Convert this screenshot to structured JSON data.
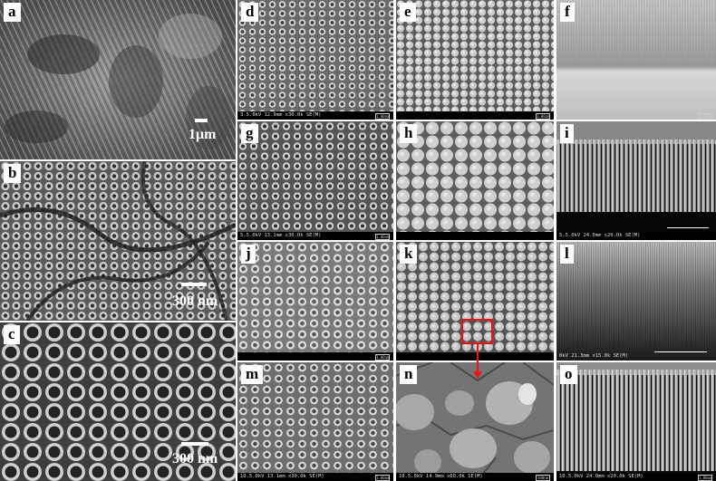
{
  "panels": {
    "a": {
      "label": "a",
      "scale": "1μm"
    },
    "b": {
      "label": "b",
      "scale": "300 nm"
    },
    "c": {
      "label": "c",
      "scale": "300 nm"
    },
    "d": {
      "label": "d",
      "footer": "3.5.0kV 12.9mm x30.0k SE(M)",
      "sb": "1.00um"
    },
    "e": {
      "label": "e",
      "footer": "",
      "sb": "1.00um"
    },
    "f": {
      "label": "f",
      "footer": "",
      "sb": "1.00um"
    },
    "g": {
      "label": "g",
      "footer": "5.5.0kV 13.1mm x30.0k SE(M)",
      "sb": "1.00um"
    },
    "h": {
      "label": "h",
      "footer": "",
      "sb": ""
    },
    "i": {
      "label": "i",
      "footer": "5.5.0kV 24.0mm x20.0k SE(M)",
      "sb": ""
    },
    "j": {
      "label": "j",
      "footer": "",
      "sb": "1.00um"
    },
    "k": {
      "label": "k",
      "footer": "",
      "sb": ""
    },
    "l": {
      "label": "l",
      "footer": "0kV 21.3mm x15.0k SE(M)",
      "sb": ""
    },
    "m": {
      "label": "m",
      "footer": "10.5.0kV 13.1mm x30.0k SE(M)",
      "sb": "1.00um"
    },
    "n": {
      "label": "n",
      "footer": "10.5.0kV 14.9mm x60.0k SE(M)",
      "sb": "500nm"
    },
    "o": {
      "label": "o",
      "footer": "10.5.0kV 24.0mm x20.0k SE(M)",
      "sb": "1.00um"
    }
  }
}
